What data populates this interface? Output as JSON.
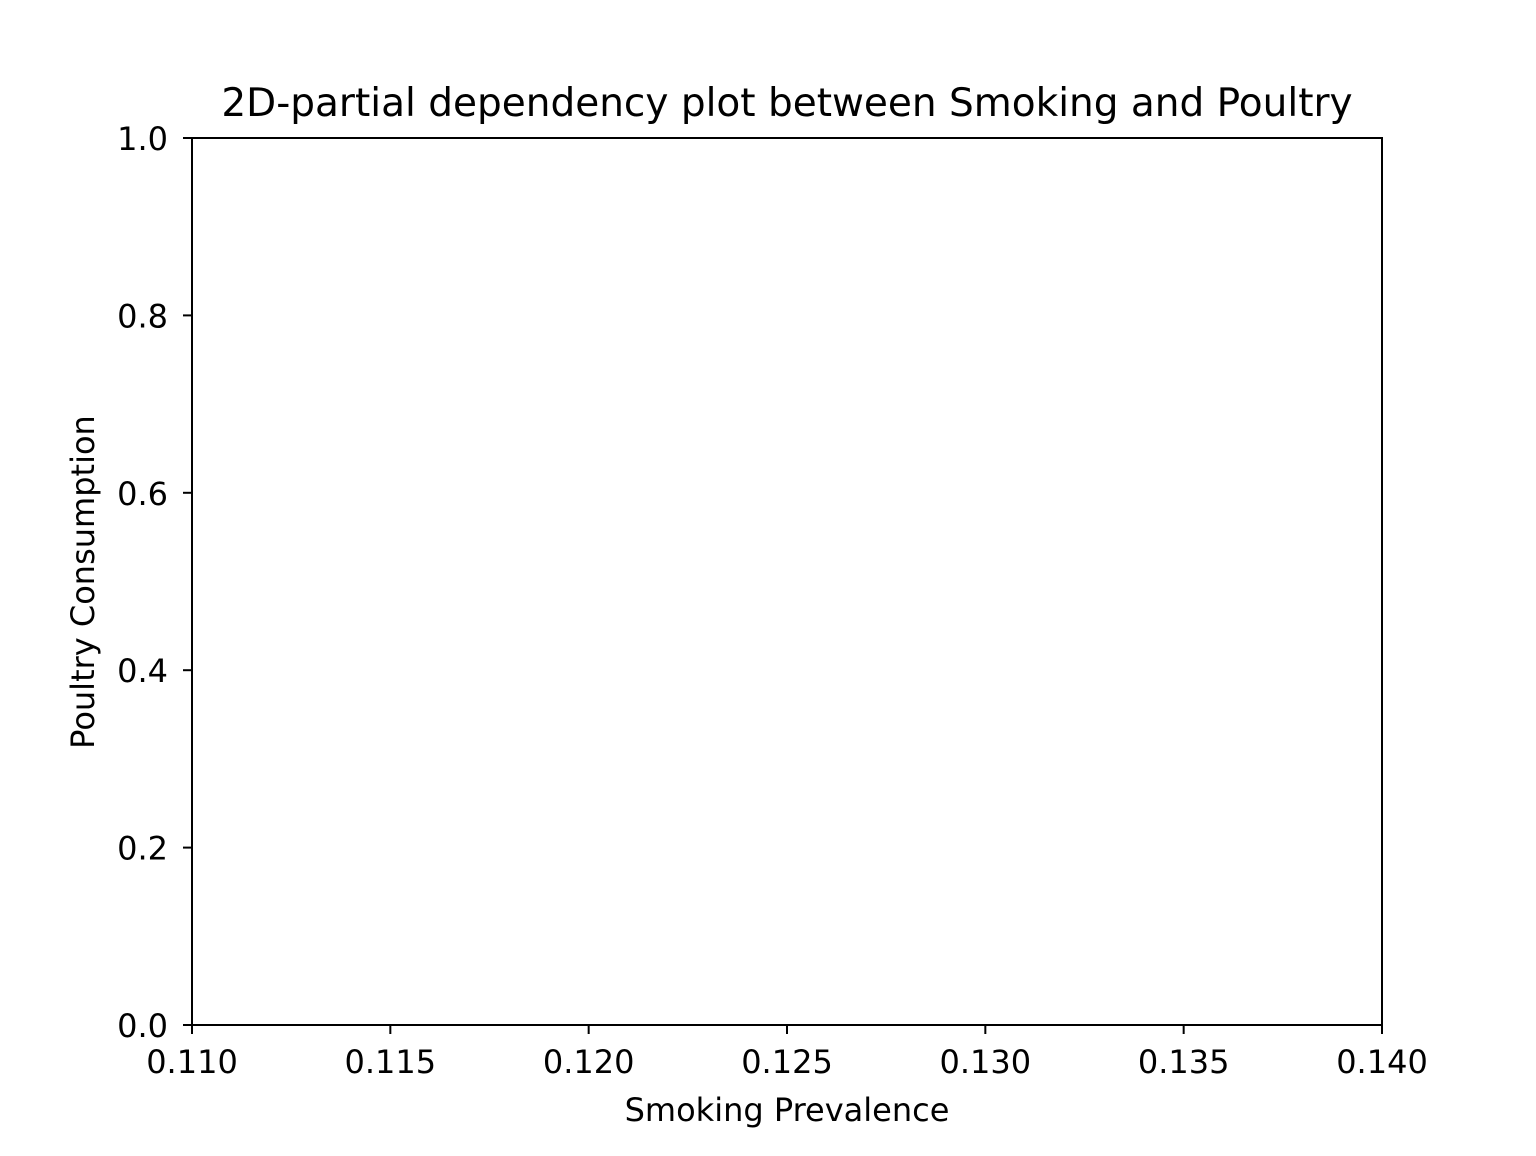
{
  "chart_data": {
    "type": "heatmap",
    "title": "2D-partial dependency plot between Smoking and Poultry",
    "xlabel": "Smoking Prevalence",
    "ylabel": "Poultry Consumption",
    "xlim": [
      0.11,
      0.14
    ],
    "ylim": [
      0.0,
      1.0
    ],
    "xticks": [
      {
        "value": 0.11,
        "label": "0.110"
      },
      {
        "value": 0.115,
        "label": "0.115"
      },
      {
        "value": 0.12,
        "label": "0.120"
      },
      {
        "value": 0.125,
        "label": "0.125"
      },
      {
        "value": 0.13,
        "label": "0.130"
      },
      {
        "value": 0.135,
        "label": "0.135"
      },
      {
        "value": 0.14,
        "label": "0.140"
      }
    ],
    "yticks": [
      {
        "value": 0.0,
        "label": "0.0"
      },
      {
        "value": 0.2,
        "label": "0.2"
      },
      {
        "value": 0.4,
        "label": "0.4"
      },
      {
        "value": 0.6,
        "label": "0.6"
      },
      {
        "value": 0.8,
        "label": "0.8"
      },
      {
        "value": 1.0,
        "label": "1.0"
      }
    ],
    "series": [],
    "grid": false,
    "legend": "none"
  }
}
